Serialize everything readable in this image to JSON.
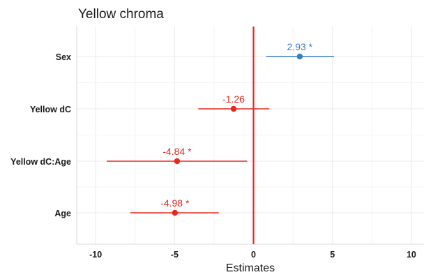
{
  "chart_data": {
    "type": "scatter",
    "title": "Yellow chroma",
    "xlabel": "Estimates",
    "ylabel": "",
    "xlim": [
      -11.2,
      10.8
    ],
    "x_ticks": [
      -10,
      -5,
      0,
      5,
      10
    ],
    "x_tick_labels": [
      "-10",
      "-5",
      "0",
      "5",
      "10"
    ],
    "categories": [
      "Sex",
      "Yellow dC",
      "Yellow dC:Age",
      "Age"
    ],
    "estimates": [
      2.93,
      -1.26,
      -4.84,
      -4.98
    ],
    "ci_low": [
      0.8,
      -3.5,
      -9.3,
      -7.8
    ],
    "ci_high": [
      5.1,
      1.0,
      -0.4,
      -2.2
    ],
    "labels": [
      "2.93 *",
      "-1.26",
      "-4.84 *",
      "-4.98 *"
    ],
    "point_colors": [
      "#3b7dc4",
      "#e8281e",
      "#e8281e",
      "#e8281e"
    ],
    "reference_line": {
      "x": 0,
      "color": "#e8281e"
    },
    "grid": true,
    "legend": "none"
  }
}
